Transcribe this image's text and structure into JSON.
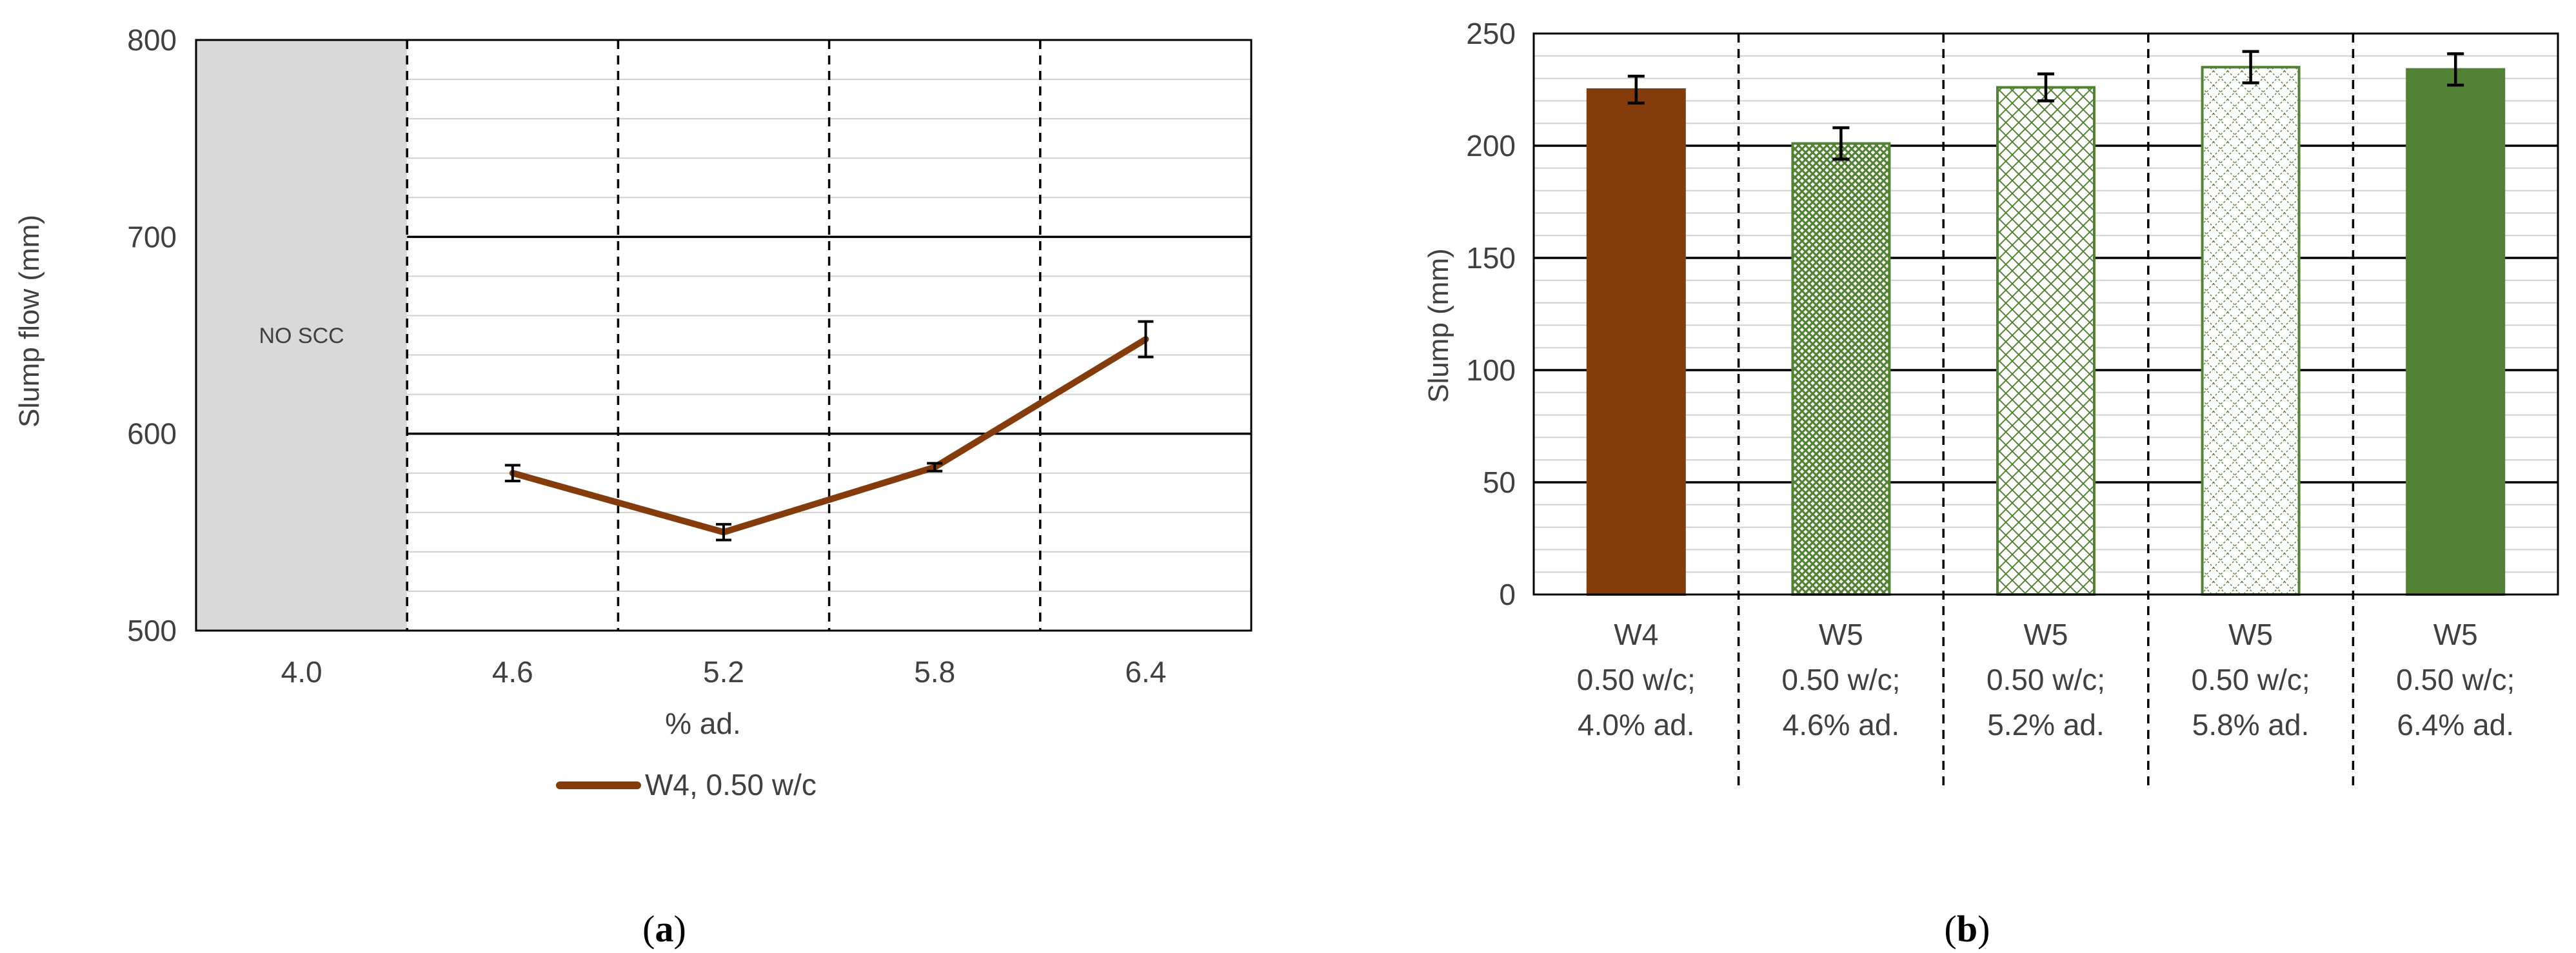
{
  "chart_data": [
    {
      "type": "line",
      "panel_label": "a",
      "xlabel": "% ad.",
      "ylabel": "Slump flow (mm)",
      "ylim": [
        500,
        800
      ],
      "yticks": [
        500,
        600,
        700,
        800
      ],
      "y_minor_step": 20,
      "categories": [
        "4.0",
        "4.6",
        "5.2",
        "5.8",
        "6.4"
      ],
      "shaded_region": {
        "category": "4.0",
        "label": "NO SCC",
        "color": "#d9d9d9"
      },
      "series": [
        {
          "name": "W4, 0.50 w/c",
          "color": "#843c0c",
          "points": [
            {
              "x": "4.6",
              "y": 580,
              "err": 4
            },
            {
              "x": "5.2",
              "y": 550,
              "err": 4
            },
            {
              "x": "5.8",
              "y": 583,
              "err": 2
            },
            {
              "x": "6.4",
              "y": 648,
              "err": 9
            }
          ]
        }
      ],
      "legend_position": "bottom",
      "grid": true
    },
    {
      "type": "bar",
      "panel_label": "b",
      "ylabel": "Slump (mm)",
      "ylim": [
        0,
        250
      ],
      "yticks": [
        0,
        50,
        100,
        150,
        200,
        250
      ],
      "y_minor_step": 10,
      "categories": [
        [
          "W4",
          "0.50 w/c;",
          "4.0% ad."
        ],
        [
          "W5",
          "0.50 w/c;",
          "4.6% ad."
        ],
        [
          "W5",
          "0.50 w/c;",
          "5.2% ad."
        ],
        [
          "W5",
          "0.50 w/c;",
          "5.8% ad."
        ],
        [
          "W5",
          "0.50 w/c;",
          "6.4% ad."
        ]
      ],
      "values": [
        225,
        201,
        226,
        235,
        234
      ],
      "errors": [
        6,
        7,
        6,
        7,
        7
      ],
      "bar_styles": [
        "solid-brown",
        "dense-check-green",
        "diamond-green",
        "sparse-diamond-green",
        "solid-green"
      ],
      "colors": {
        "brown": "#843c0c",
        "green": "#538135"
      },
      "grid": true
    }
  ]
}
